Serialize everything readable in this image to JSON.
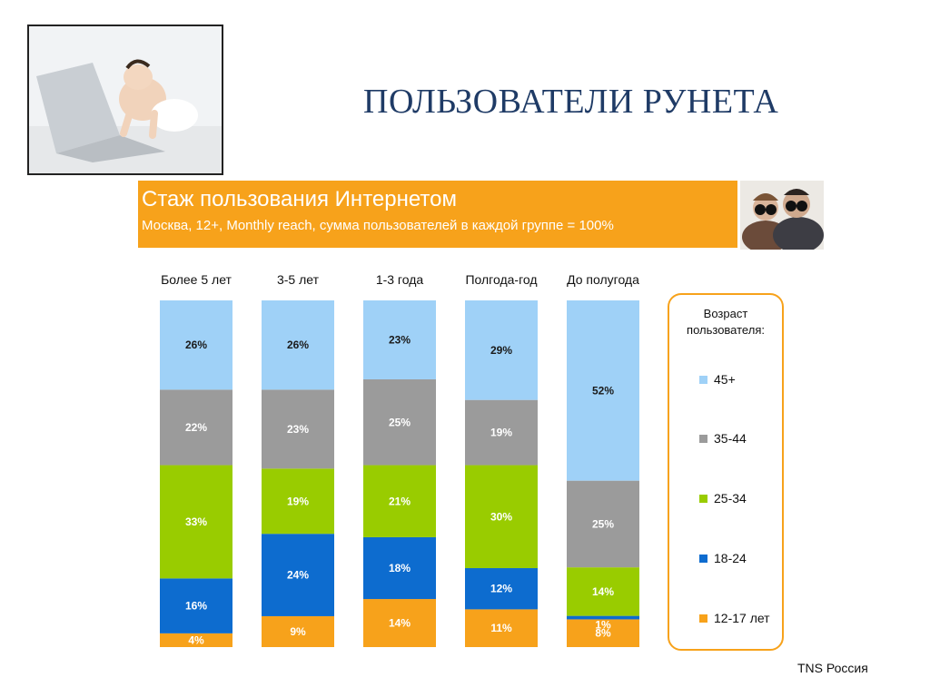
{
  "page": {
    "title": "ПОЛЬЗОВАТЕЛИ РУНЕТА",
    "source": "TNS Россия"
  },
  "banner": {
    "title": "Стаж пользования Интернетом",
    "subtitle": "Москва, 12+, Monthly reach, сумма пользователей в каждой группе = 100%"
  },
  "colors": {
    "banner": "#f7a21b",
    "series": [
      "#f7a21b",
      "#0d6ccf",
      "#99cc00",
      "#9b9b9b",
      "#9fd1f7"
    ],
    "legend_border": "#f7a21b"
  },
  "chart_data": {
    "type": "bar",
    "stacked": true,
    "categories": [
      "Более 5 лет",
      "3-5 лет",
      "1-3 года",
      "Полгода-год",
      "До полугода"
    ],
    "series": [
      {
        "name": "12-17 лет",
        "values": [
          4,
          9,
          14,
          11,
          8
        ]
      },
      {
        "name": "18-24",
        "values": [
          16,
          24,
          18,
          12,
          1
        ]
      },
      {
        "name": "25-34",
        "values": [
          33,
          19,
          21,
          30,
          14
        ]
      },
      {
        "name": "35-44",
        "values": [
          22,
          23,
          25,
          19,
          25
        ]
      },
      {
        "name": "45+",
        "values": [
          26,
          26,
          23,
          29,
          52
        ]
      }
    ],
    "ylim": [
      0,
      100
    ],
    "legend": {
      "title": "Возраст пользователя:",
      "placement": "right",
      "order": [
        "45+",
        "35-44",
        "25-34",
        "18-24",
        "12-17 лет"
      ]
    },
    "data_labels": true,
    "grid": false
  }
}
